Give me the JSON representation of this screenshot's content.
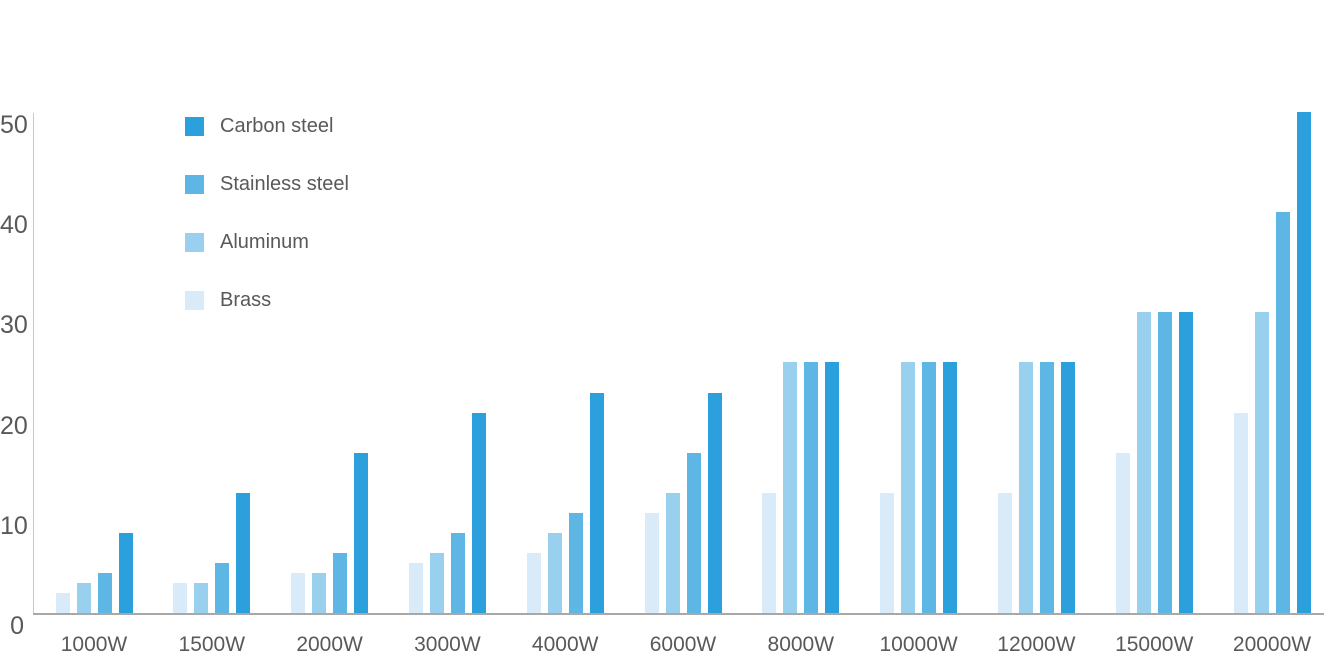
{
  "chart_data": {
    "type": "bar",
    "title": "",
    "xlabel": "",
    "ylabel": "",
    "categories": [
      "1000W",
      "1500W",
      "2000W",
      "3000W",
      "4000W",
      "6000W",
      "8000W",
      "10000W",
      "12000W",
      "15000W",
      "20000W"
    ],
    "series": [
      {
        "name": "Carbon steel",
        "color": "#2CA0DC",
        "values": [
          8,
          12,
          16,
          20,
          22,
          22,
          25,
          25,
          25,
          30,
          50
        ]
      },
      {
        "name": "Stainless steel",
        "color": "#5EB6E4",
        "values": [
          4,
          5,
          6,
          8,
          10,
          16,
          25,
          25,
          25,
          30,
          40
        ]
      },
      {
        "name": "Aluminum",
        "color": "#99D0ED",
        "values": [
          3,
          3,
          4,
          6,
          8,
          12,
          25,
          25,
          25,
          30,
          30
        ]
      },
      {
        "name": "Brass",
        "color": "#D9EBF8",
        "values": [
          2,
          3,
          4,
          5,
          6,
          10,
          12,
          12,
          12,
          16,
          20
        ]
      }
    ],
    "bar_order_in_group": [
      "Brass",
      "Aluminum",
      "Stainless steel",
      "Carbon steel"
    ],
    "ylim": [
      0,
      50
    ],
    "yticks": [
      0,
      10,
      20,
      30,
      40,
      50
    ],
    "legend_position": "top-left-inside",
    "grid": false,
    "axis_line_color": "#a8a8a8",
    "text_color": "#595959"
  }
}
